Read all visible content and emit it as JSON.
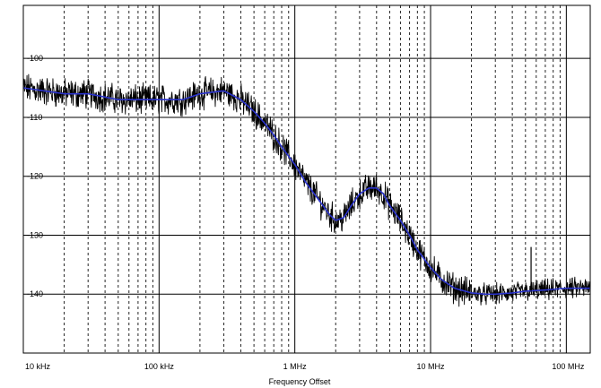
{
  "chart_data": {
    "type": "line",
    "title": "",
    "xlabel": "Frequency Offset",
    "ylabel": "",
    "x_scale": "log",
    "xlim_hz": [
      10000,
      150000000
    ],
    "ylim": [
      -150,
      -91
    ],
    "grid": {
      "major_x_hz": [
        10000,
        100000,
        1000000,
        10000000,
        100000000
      ],
      "minor_x": "dashed, 2-9 per decade",
      "major_y": [
        -100,
        -110,
        -120,
        -130,
        -140
      ]
    },
    "x_tick_labels": [
      "10 kHz",
      "100 kHz",
      "1 MHz",
      "10 MHz",
      "100 MHz"
    ],
    "y_tick_labels": [
      "-100",
      "-110",
      "-120",
      "-130",
      "-140"
    ],
    "series": [
      {
        "kind": "measured",
        "color": "#000000",
        "x_hz": [
          10000,
          20000,
          30000,
          50000,
          70000,
          100000,
          150000,
          200000,
          300000,
          400000,
          500000,
          600000,
          700000,
          800000,
          1000000,
          1200000,
          1500000,
          1800000,
          2000000,
          2300000,
          2600000,
          3000000,
          3500000,
          4000000,
          4500000,
          5000000,
          6000000,
          7000000,
          8000000,
          10000000,
          12000000,
          15000000,
          20000000,
          25000000,
          30000000,
          40000000,
          50000000,
          70000000,
          100000000,
          150000000
        ],
        "y_db": [
          -105,
          -106,
          -106,
          -107,
          -107,
          -107,
          -107,
          -106,
          -105.5,
          -107,
          -109,
          -111,
          -113,
          -115,
          -118,
          -121,
          -124,
          -126.5,
          -127.5,
          -127,
          -125,
          -123,
          -122,
          -122,
          -123,
          -125,
          -127.5,
          -130,
          -132.5,
          -135.5,
          -137.5,
          -139,
          -139.8,
          -140,
          -140,
          -139.8,
          -139.5,
          -139.3,
          -139,
          -139
        ],
        "noise_band_db": 2
      },
      {
        "kind": "fitted",
        "color": "#2a33cc",
        "x_hz": [
          10000,
          20000,
          30000,
          50000,
          70000,
          100000,
          150000,
          200000,
          300000,
          400000,
          500000,
          600000,
          700000,
          800000,
          1000000,
          1200000,
          1500000,
          1800000,
          2000000,
          2300000,
          2600000,
          3000000,
          3500000,
          4000000,
          4500000,
          5000000,
          6000000,
          7000000,
          8000000,
          10000000,
          12000000,
          15000000,
          20000000,
          25000000,
          30000000,
          40000000,
          50000000,
          70000000,
          100000000,
          150000000
        ],
        "y_db": [
          -105,
          -106,
          -106,
          -107,
          -107,
          -107,
          -107,
          -106,
          -105.5,
          -107,
          -109,
          -111,
          -113,
          -115,
          -118,
          -121,
          -124,
          -126.5,
          -127.5,
          -127,
          -125,
          -123,
          -122,
          -122,
          -123,
          -125,
          -127.5,
          -130,
          -132.5,
          -135.5,
          -137.5,
          -139,
          -139.8,
          -140,
          -140,
          -139.8,
          -139.5,
          -139.3,
          -139,
          -139
        ]
      }
    ],
    "spur": {
      "x_hz": 55000000,
      "y_db": -132
    }
  }
}
